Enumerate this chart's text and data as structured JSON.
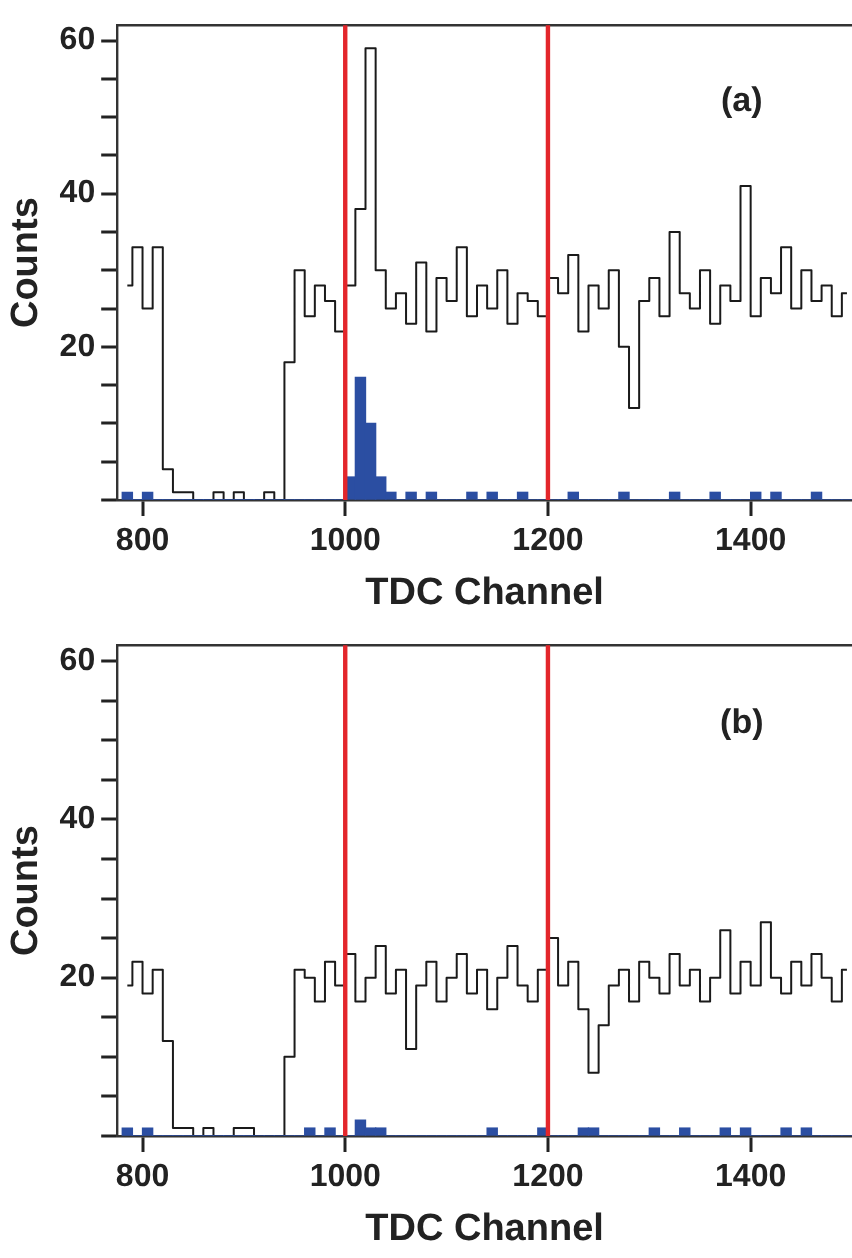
{
  "chart_data": [
    {
      "type": "histogram",
      "xlabel": "TDC Channel",
      "ylabel": "Counts",
      "annotations": [
        "(a)"
      ],
      "bins": [
        780,
        790,
        800,
        810,
        820,
        830,
        840,
        850,
        860,
        870,
        880,
        890,
        900,
        910,
        920,
        930,
        940,
        950,
        960,
        970,
        980,
        990,
        1000,
        1010,
        1020,
        1030,
        1040,
        1050,
        1060,
        1070,
        1080,
        1090,
        1100,
        1110,
        1120,
        1130,
        1140,
        1150,
        1160,
        1170,
        1180,
        1190,
        1200,
        1210,
        1220,
        1230,
        1240,
        1250,
        1260,
        1270,
        1280,
        1290,
        1300,
        1310,
        1320,
        1330,
        1340,
        1350,
        1360,
        1370,
        1380,
        1390,
        1400,
        1410,
        1420,
        1430,
        1440,
        1450,
        1460,
        1470,
        1480,
        1490,
        1500
      ],
      "series": [
        {
          "type": "step",
          "color": "#1a1a1a",
          "x": [
            785,
            795,
            805,
            815,
            825,
            835,
            845,
            855,
            865,
            875,
            885,
            895,
            905,
            915,
            925,
            935,
            945,
            955,
            965,
            975,
            985,
            995,
            1005,
            1015,
            1025,
            1035,
            1045,
            1055,
            1065,
            1075,
            1085,
            1095,
            1105,
            1115,
            1125,
            1135,
            1145,
            1155,
            1165,
            1175,
            1185,
            1195,
            1205,
            1215,
            1225,
            1235,
            1245,
            1255,
            1265,
            1275,
            1285,
            1295,
            1305,
            1315,
            1325,
            1335,
            1345,
            1355,
            1365,
            1375,
            1385,
            1395,
            1405,
            1415,
            1425,
            1435,
            1445,
            1455,
            1465,
            1475,
            1485,
            1495
          ],
          "values": [
            28,
            33,
            25,
            33,
            4,
            1,
            1,
            0,
            0,
            1,
            0,
            1,
            0,
            0,
            1,
            0,
            18,
            30,
            24,
            28,
            26,
            22,
            28,
            38,
            59,
            30,
            25,
            27,
            23,
            31,
            22,
            29,
            26,
            33,
            24,
            28,
            25,
            30,
            23,
            27,
            26,
            24,
            29,
            27,
            32,
            22,
            28,
            25,
            30,
            20,
            12,
            26,
            29,
            24,
            35,
            27,
            25,
            30,
            23,
            28,
            26,
            41,
            24,
            29,
            27,
            33,
            25,
            30,
            26,
            28,
            24,
            27
          ]
        },
        {
          "color": "#2b4ea2",
          "values": [
            1,
            0,
            1,
            0,
            0,
            0,
            0,
            0,
            0,
            0,
            0,
            0,
            0,
            0,
            0,
            0,
            0,
            0,
            0,
            0,
            0,
            0,
            3,
            16,
            10,
            3,
            1,
            0,
            1,
            0,
            1,
            0,
            0,
            0,
            1,
            0,
            1,
            0,
            0,
            1,
            0,
            0,
            0,
            0,
            1,
            0,
            0,
            0,
            0,
            1,
            0,
            0,
            0,
            0,
            1,
            0,
            0,
            0,
            1,
            0,
            0,
            0,
            1,
            0,
            1,
            0,
            0,
            0,
            1,
            0,
            0,
            0
          ]
        }
      ],
      "xlim": [
        775,
        1500
      ],
      "xticks": [
        800,
        1000,
        1200,
        1400
      ],
      "ylim": [
        0,
        62
      ],
      "yticks": [
        {
          "value": 0,
          "label": null
        },
        {
          "value": 5,
          "label": null
        },
        {
          "value": 10,
          "label": null
        },
        {
          "value": 15,
          "label": null
        },
        20,
        {
          "value": 25,
          "label": null
        },
        {
          "value": 30,
          "label": null
        },
        {
          "value": 35,
          "label": null
        },
        40,
        {
          "value": 45,
          "label": null
        },
        {
          "value": 50,
          "label": null
        },
        {
          "value": 55,
          "label": null
        },
        60
      ],
      "ref_lines": [
        {
          "axis": "x",
          "value": 1000,
          "color": "#e3262b"
        },
        {
          "axis": "x",
          "value": 1200,
          "color": "#e3262b"
        }
      ],
      "grid": false
    },
    {
      "type": "histogram",
      "xlabel": "TDC Channel",
      "ylabel": "Counts",
      "annotations": [
        "(b)"
      ],
      "bins": [
        780,
        790,
        800,
        810,
        820,
        830,
        840,
        850,
        860,
        870,
        880,
        890,
        900,
        910,
        920,
        930,
        940,
        950,
        960,
        970,
        980,
        990,
        1000,
        1010,
        1020,
        1030,
        1040,
        1050,
        1060,
        1070,
        1080,
        1090,
        1100,
        1110,
        1120,
        1130,
        1140,
        1150,
        1160,
        1170,
        1180,
        1190,
        1200,
        1210,
        1220,
        1230,
        1240,
        1250,
        1260,
        1270,
        1280,
        1290,
        1300,
        1310,
        1320,
        1330,
        1340,
        1350,
        1360,
        1370,
        1380,
        1390,
        1400,
        1410,
        1420,
        1430,
        1440,
        1450,
        1460,
        1470,
        1480,
        1490,
        1500
      ],
      "series": [
        {
          "type": "step",
          "color": "#1a1a1a",
          "x": [
            785,
            795,
            805,
            815,
            825,
            835,
            845,
            855,
            865,
            875,
            885,
            895,
            905,
            915,
            925,
            935,
            945,
            955,
            965,
            975,
            985,
            995,
            1005,
            1015,
            1025,
            1035,
            1045,
            1055,
            1065,
            1075,
            1085,
            1095,
            1105,
            1115,
            1125,
            1135,
            1145,
            1155,
            1165,
            1175,
            1185,
            1195,
            1205,
            1215,
            1225,
            1235,
            1245,
            1255,
            1265,
            1275,
            1285,
            1295,
            1305,
            1315,
            1325,
            1335,
            1345,
            1355,
            1365,
            1375,
            1385,
            1395,
            1405,
            1415,
            1425,
            1435,
            1445,
            1455,
            1465,
            1475,
            1485,
            1495
          ],
          "values": [
            19,
            22,
            18,
            21,
            12,
            1,
            1,
            0,
            1,
            0,
            0,
            1,
            1,
            0,
            0,
            0,
            10,
            21,
            20,
            17,
            22,
            19,
            23,
            17,
            20,
            24,
            18,
            21,
            11,
            19,
            22,
            17,
            20,
            23,
            18,
            21,
            16,
            20,
            24,
            19,
            17,
            21,
            25,
            19,
            22,
            16,
            8,
            14,
            19,
            21,
            17,
            22,
            20,
            18,
            23,
            19,
            21,
            17,
            20,
            26,
            18,
            22,
            19,
            27,
            20,
            18,
            22,
            19,
            23,
            20,
            17,
            21
          ]
        },
        {
          "color": "#2b4ea2",
          "values": [
            1,
            0,
            1,
            0,
            0,
            0,
            0,
            0,
            0,
            0,
            0,
            0,
            0,
            0,
            0,
            0,
            0,
            0,
            1,
            0,
            1,
            0,
            0,
            2,
            1,
            1,
            0,
            0,
            0,
            0,
            0,
            0,
            0,
            0,
            0,
            0,
            1,
            0,
            0,
            0,
            0,
            1,
            0,
            0,
            0,
            1,
            1,
            0,
            0,
            0,
            0,
            0,
            1,
            0,
            0,
            1,
            0,
            0,
            0,
            1,
            0,
            1,
            0,
            0,
            0,
            1,
            0,
            1,
            0,
            0,
            0,
            0
          ]
        }
      ],
      "xlim": [
        775,
        1500
      ],
      "xticks": [
        800,
        1000,
        1200,
        1400
      ],
      "ylim": [
        0,
        62
      ],
      "yticks": [
        {
          "value": 0,
          "label": null
        },
        {
          "value": 5,
          "label": null
        },
        {
          "value": 10,
          "label": null
        },
        {
          "value": 15,
          "label": null
        },
        20,
        {
          "value": 25,
          "label": null
        },
        {
          "value": 30,
          "label": null
        },
        {
          "value": 35,
          "label": null
        },
        40,
        {
          "value": 45,
          "label": null
        },
        {
          "value": 50,
          "label": null
        },
        {
          "value": 55,
          "label": null
        },
        60
      ],
      "ref_lines": [
        {
          "axis": "x",
          "value": 1000,
          "color": "#e3262b"
        },
        {
          "axis": "x",
          "value": 1200,
          "color": "#e3262b"
        }
      ],
      "grid": false
    }
  ]
}
